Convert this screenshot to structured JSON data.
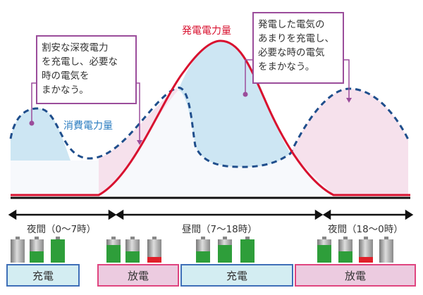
{
  "labels": {
    "generation": "発電電力量",
    "consumption": "消費電力量"
  },
  "callouts": {
    "left": [
      "割安な深夜電力",
      "を充電し、必要な",
      "時の電気を",
      "まかなう。"
    ],
    "right": [
      "発電した電気の",
      "あまりを充電し、",
      "必要な時の電気",
      "をまかなう。"
    ]
  },
  "periods": [
    "夜間（0〜7時）",
    "昼間（7〜18時）",
    "夜間（18〜0時）"
  ],
  "modes": [
    "充電",
    "放電",
    "充電",
    "放電"
  ],
  "battery_levels": [
    [
      0,
      0.5,
      1
    ],
    [
      0.75,
      0.5,
      0.25
    ],
    [
      0.5,
      0.75,
      1
    ],
    [
      0.75,
      0.5,
      0.25,
      0
    ]
  ],
  "colors": {
    "generation_line": "#d8112f",
    "consumption_line": "#1f4e8c",
    "charge_fill": "#cde6f3",
    "discharge_fill": "#f6e1ec",
    "callout_border": "#9b4d9b",
    "battery_green": "#2e9e3a",
    "battery_red": "#e0202a"
  }
}
